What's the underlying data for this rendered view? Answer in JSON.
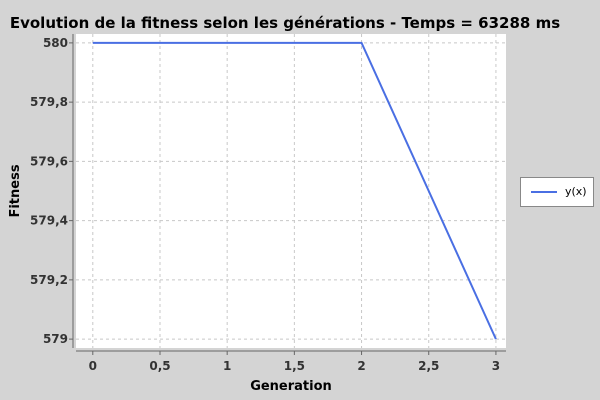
{
  "chart_data": {
    "type": "line",
    "title": "Evolution de la fitness selon les générations - Temps = 63288 ms",
    "xlabel": "Generation",
    "ylabel": "Fitness",
    "xlim": [
      -0.125,
      3.075
    ],
    "ylim": [
      578.97,
      580.03
    ],
    "x_ticks": [
      "0",
      "0,5",
      "1",
      "1,5",
      "2",
      "2,5",
      "3"
    ],
    "x_tick_values": [
      0,
      0.5,
      1,
      1.5,
      2,
      2.5,
      3
    ],
    "y_ticks": [
      "580",
      "579,8",
      "579,6",
      "579,4",
      "579,2",
      "579"
    ],
    "y_tick_values": [
      580,
      579.8,
      579.6,
      579.4,
      579.2,
      579
    ],
    "grid": true,
    "legend_position": "right",
    "series": [
      {
        "name": "y(x)",
        "color": "#4a6fe3",
        "x": [
          0,
          1,
          2,
          3
        ],
        "y": [
          580,
          580,
          580,
          579
        ]
      }
    ]
  }
}
